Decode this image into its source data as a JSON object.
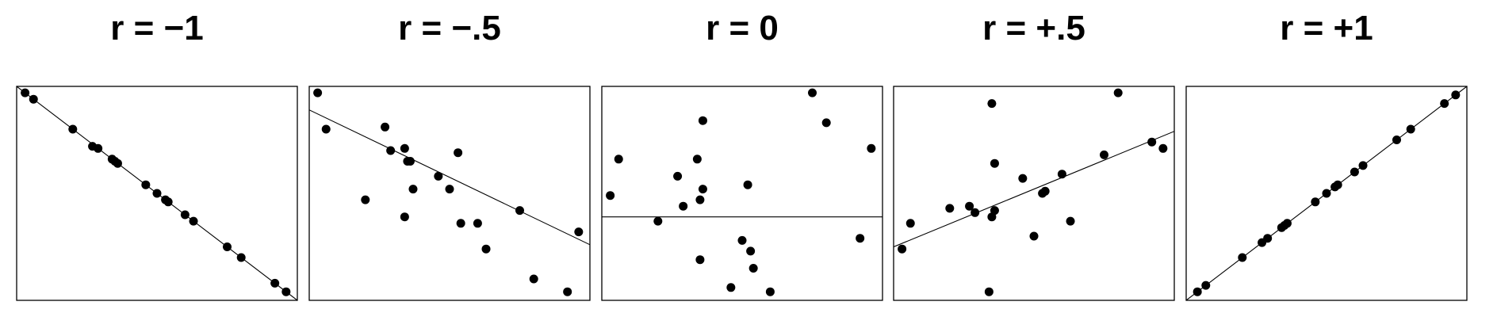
{
  "chart_data": [
    {
      "type": "scatter",
      "title": "r = −1",
      "xlim": [
        0,
        1
      ],
      "ylim": [
        0,
        1
      ],
      "points": [
        [
          0.03,
          0.97
        ],
        [
          0.06,
          0.94
        ],
        [
          0.2,
          0.8
        ],
        [
          0.27,
          0.72
        ],
        [
          0.29,
          0.71
        ],
        [
          0.34,
          0.66
        ],
        [
          0.35,
          0.65
        ],
        [
          0.36,
          0.64
        ],
        [
          0.46,
          0.54
        ],
        [
          0.5,
          0.5
        ],
        [
          0.53,
          0.47
        ],
        [
          0.54,
          0.46
        ],
        [
          0.6,
          0.4
        ],
        [
          0.63,
          0.37
        ],
        [
          0.75,
          0.25
        ],
        [
          0.8,
          0.2
        ],
        [
          0.92,
          0.08
        ],
        [
          0.96,
          0.04
        ]
      ],
      "fit_line": [
        [
          0,
          1
        ],
        [
          1,
          0
        ]
      ]
    },
    {
      "type": "scatter",
      "title": "r = −.5",
      "xlim": [
        0,
        1
      ],
      "ylim": [
        0,
        1
      ],
      "points": [
        [
          0.03,
          0.97
        ],
        [
          0.06,
          0.8
        ],
        [
          0.2,
          0.47
        ],
        [
          0.27,
          0.81
        ],
        [
          0.29,
          0.7
        ],
        [
          0.34,
          0.71
        ],
        [
          0.35,
          0.65
        ],
        [
          0.36,
          0.65
        ],
        [
          0.34,
          0.39
        ],
        [
          0.37,
          0.52
        ],
        [
          0.46,
          0.58
        ],
        [
          0.5,
          0.52
        ],
        [
          0.53,
          0.69
        ],
        [
          0.54,
          0.36
        ],
        [
          0.6,
          0.36
        ],
        [
          0.63,
          0.24
        ],
        [
          0.75,
          0.42
        ],
        [
          0.8,
          0.1
        ],
        [
          0.92,
          0.04
        ],
        [
          0.96,
          0.32
        ]
      ],
      "fit_line": [
        [
          0,
          0.89
        ],
        [
          1,
          0.26
        ]
      ]
    },
    {
      "type": "scatter",
      "title": "r = 0",
      "xlim": [
        0,
        1
      ],
      "ylim": [
        0,
        1
      ],
      "points": [
        [
          0.03,
          0.49
        ],
        [
          0.06,
          0.66
        ],
        [
          0.2,
          0.37
        ],
        [
          0.27,
          0.58
        ],
        [
          0.29,
          0.44
        ],
        [
          0.34,
          0.66
        ],
        [
          0.35,
          0.47
        ],
        [
          0.36,
          0.52
        ],
        [
          0.36,
          0.84
        ],
        [
          0.35,
          0.19
        ],
        [
          0.52,
          0.54
        ],
        [
          0.5,
          0.28
        ],
        [
          0.53,
          0.23
        ],
        [
          0.54,
          0.15
        ],
        [
          0.6,
          0.04
        ],
        [
          0.46,
          0.06
        ],
        [
          0.75,
          0.97
        ],
        [
          0.8,
          0.83
        ],
        [
          0.92,
          0.29
        ],
        [
          0.96,
          0.71
        ]
      ],
      "fit_line": [
        [
          0,
          0.39
        ],
        [
          1,
          0.39
        ]
      ]
    },
    {
      "type": "scatter",
      "title": "r = +.5",
      "xlim": [
        0,
        1
      ],
      "ylim": [
        0,
        1
      ],
      "points": [
        [
          0.03,
          0.24
        ],
        [
          0.06,
          0.36
        ],
        [
          0.2,
          0.43
        ],
        [
          0.27,
          0.44
        ],
        [
          0.29,
          0.41
        ],
        [
          0.34,
          0.04
        ],
        [
          0.35,
          0.39
        ],
        [
          0.36,
          0.42
        ],
        [
          0.35,
          0.92
        ],
        [
          0.36,
          0.64
        ],
        [
          0.46,
          0.57
        ],
        [
          0.5,
          0.3
        ],
        [
          0.53,
          0.5
        ],
        [
          0.54,
          0.51
        ],
        [
          0.6,
          0.59
        ],
        [
          0.63,
          0.37
        ],
        [
          0.75,
          0.68
        ],
        [
          0.8,
          0.97
        ],
        [
          0.92,
          0.74
        ],
        [
          0.96,
          0.71
        ]
      ],
      "fit_line": [
        [
          0,
          0.25
        ],
        [
          1,
          0.79
        ]
      ]
    },
    {
      "type": "scatter",
      "title": "r = +1",
      "xlim": [
        0,
        1
      ],
      "ylim": [
        0,
        1
      ],
      "points": [
        [
          0.04,
          0.04
        ],
        [
          0.07,
          0.07
        ],
        [
          0.2,
          0.2
        ],
        [
          0.27,
          0.27
        ],
        [
          0.29,
          0.29
        ],
        [
          0.34,
          0.34
        ],
        [
          0.35,
          0.35
        ],
        [
          0.36,
          0.36
        ],
        [
          0.46,
          0.46
        ],
        [
          0.5,
          0.5
        ],
        [
          0.53,
          0.53
        ],
        [
          0.54,
          0.54
        ],
        [
          0.6,
          0.6
        ],
        [
          0.63,
          0.63
        ],
        [
          0.75,
          0.75
        ],
        [
          0.8,
          0.8
        ],
        [
          0.92,
          0.92
        ],
        [
          0.96,
          0.96
        ]
      ],
      "fit_line": [
        [
          0,
          0
        ],
        [
          1,
          1
        ]
      ]
    }
  ],
  "colors": {
    "point": "#000000",
    "line": "#000000",
    "frame": "#000000"
  }
}
